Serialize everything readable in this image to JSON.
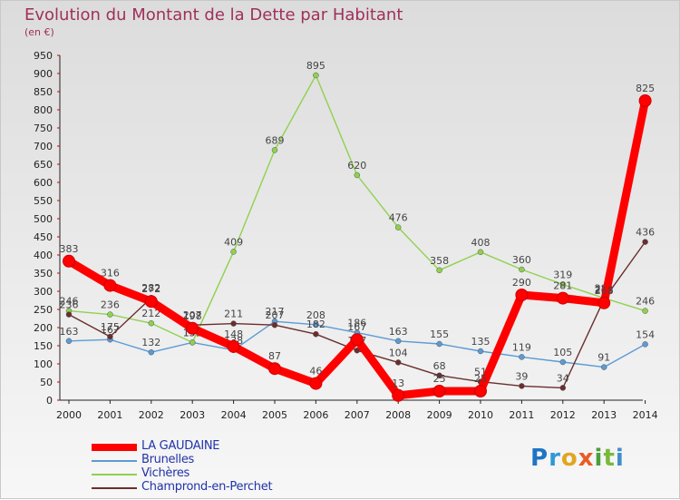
{
  "chart_data": {
    "type": "line",
    "title": "Evolution du Montant de la Dette par Habitant",
    "subtitle": "(en €)",
    "x": [
      "2000",
      "2001",
      "2002",
      "2003",
      "2004",
      "2005",
      "2006",
      "2007",
      "2008",
      "2009",
      "2010",
      "2011",
      "2012",
      "2013",
      "2014"
    ],
    "ylim": [
      0,
      950
    ],
    "yticks": [
      0,
      50,
      100,
      150,
      200,
      250,
      300,
      350,
      400,
      450,
      500,
      550,
      600,
      650,
      700,
      750,
      800,
      850,
      900,
      950
    ],
    "grid": false,
    "legend_position": "bottom-left",
    "series": [
      {
        "name": "LA GAUDAINE",
        "color": "#ff0000",
        "values": [
          383,
          316,
          272,
          198,
          148,
          87,
          46,
          167,
          13,
          25,
          25,
          290,
          281,
          268,
          825
        ],
        "labels": [
          "383",
          "316",
          "272",
          "198",
          "148",
          "87",
          "46",
          "167",
          "13",
          "25",
          "25",
          "290",
          "281",
          "268",
          "825"
        ]
      },
      {
        "name": "Brunelles",
        "color": "#5b9bd5",
        "values": [
          163,
          167,
          132,
          159,
          138,
          217,
          208,
          186,
          163,
          155,
          135,
          119,
          105,
          91,
          154
        ],
        "labels": [
          "163",
          "167",
          "132",
          "159",
          "138",
          "217",
          "208",
          "186",
          "163",
          "155",
          "135",
          "119",
          "105",
          "91",
          "154"
        ]
      },
      {
        "name": "Vichères",
        "color": "#8fd14f",
        "values": [
          246,
          236,
          212,
          159,
          409,
          689,
          895,
          620,
          476,
          358,
          408,
          360,
          319,
          281,
          246
        ],
        "labels": [
          "246",
          "236",
          "212",
          "159",
          "409",
          "689",
          "895",
          "620",
          "476",
          "358",
          "408",
          "360",
          "319",
          "281",
          "246"
        ]
      },
      {
        "name": "Champrond-en-Perchet",
        "color": "#6b2d2d",
        "values": [
          236,
          175,
          282,
          207,
          211,
          207,
          182,
          137,
          104,
          68,
          51,
          39,
          34,
          278,
          436
        ],
        "labels": [
          "236",
          "175",
          "282",
          "207",
          "211",
          "207",
          "182",
          "137",
          "104",
          "68",
          "51",
          "39",
          "34",
          "278",
          "436"
        ]
      }
    ]
  },
  "logo": {
    "p": "P",
    "r": "r",
    "o1": "o",
    "x": "x",
    "i1": "i",
    "t": "t",
    "i2": "i"
  }
}
